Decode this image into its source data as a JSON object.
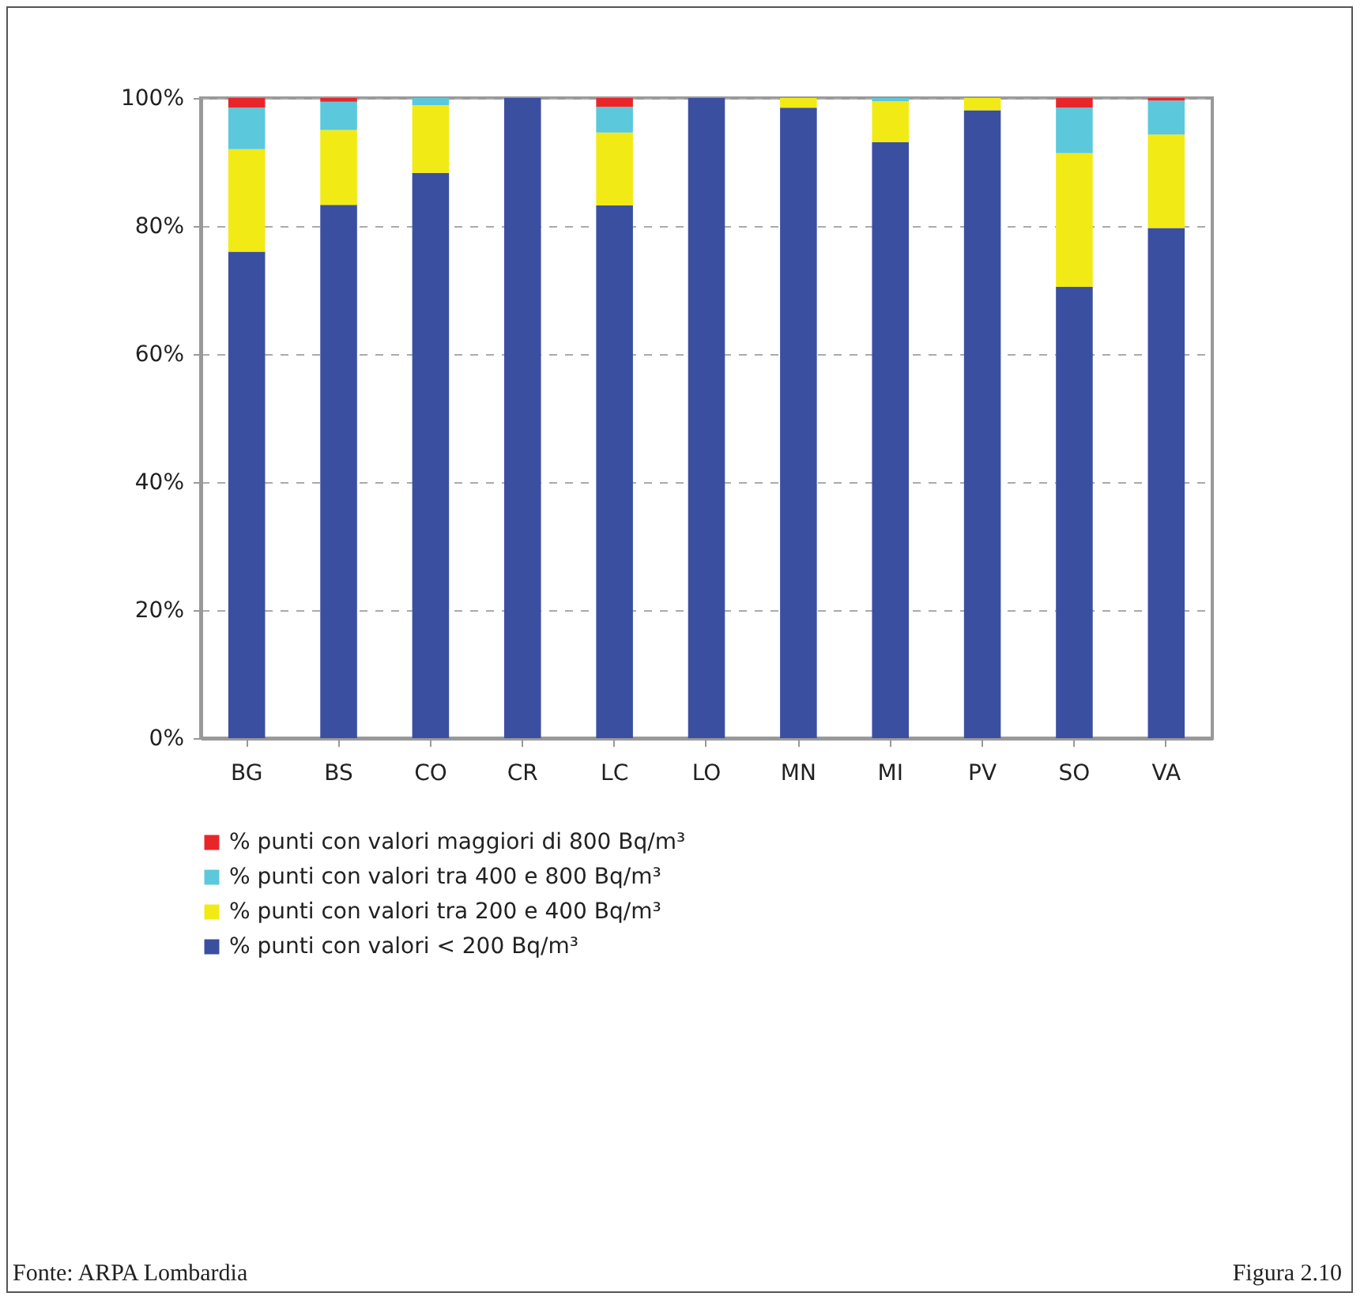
{
  "chart_data": {
    "type": "bar",
    "stacked": true,
    "categories": [
      "BG",
      "BS",
      "CO",
      "CR",
      "LC",
      "LO",
      "MN",
      "MI",
      "PV",
      "SO",
      "VA"
    ],
    "series": [
      {
        "name": "% punti con valori < 200 Bq/m³",
        "color": "#3a4fa0",
        "values": [
          76,
          83.3,
          88.3,
          100,
          83.2,
          100,
          98.5,
          93.1,
          98.1,
          70.5,
          79.7
        ]
      },
      {
        "name": "% punti con valori tra 200 e 400 Bq/m³",
        "color": "#f2ea14",
        "values": [
          16,
          11.7,
          10.6,
          0,
          11.4,
          0,
          1.5,
          6.4,
          1.9,
          20.9,
          14.6
        ]
      },
      {
        "name": "% punti con valori tra 400 e 800 Bq/m³",
        "color": "#5bc8dc",
        "values": [
          6.5,
          4.4,
          1.1,
          0,
          4,
          0,
          0,
          0.5,
          0,
          7.1,
          5.3
        ]
      },
      {
        "name": "% punti con valori maggiori di 800 Bq/m³",
        "color": "#e8262a",
        "values": [
          1.5,
          0.6,
          0,
          0,
          1.4,
          0,
          0,
          0,
          0,
          1.5,
          0.4
        ]
      }
    ],
    "ylim": [
      0,
      100
    ],
    "yticks": [
      {
        "value": 0,
        "label": "0%"
      },
      {
        "value": 20,
        "label": "20%"
      },
      {
        "value": 40,
        "label": "40%"
      },
      {
        "value": 60,
        "label": "60%"
      },
      {
        "value": 80,
        "label": "80%"
      },
      {
        "value": 100,
        "label": "100%"
      }
    ],
    "grid": "y",
    "legend": "bottom",
    "annotations": [
      "Fonte: ARPA Lombardia",
      "Figura 2.10"
    ]
  }
}
